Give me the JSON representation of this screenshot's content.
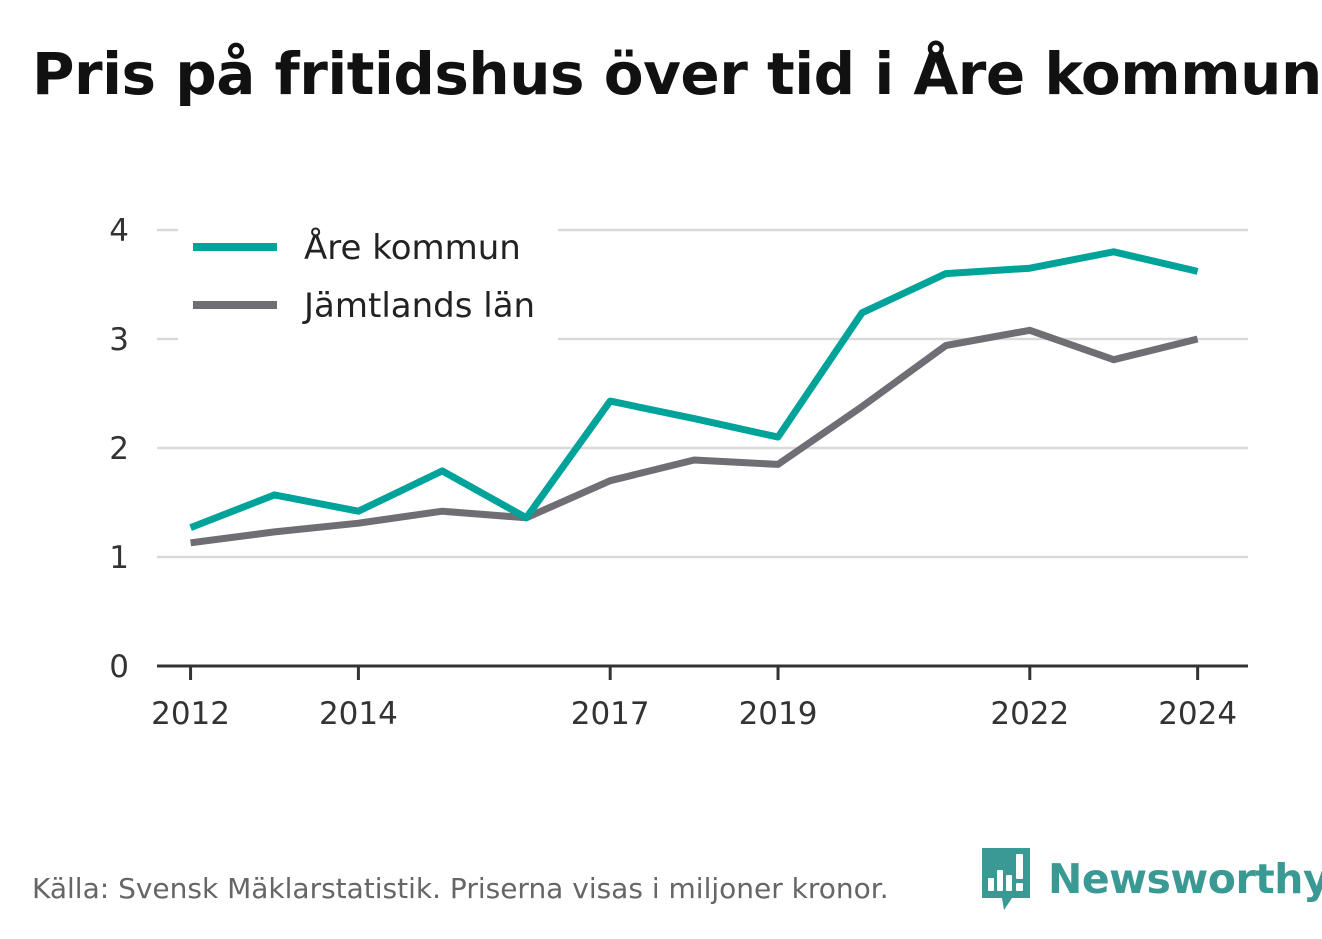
{
  "title": "Pris på fritidshus över tid i Åre kommun",
  "footer": {
    "source": "Källa: Svensk Mäklarstatistik. Priserna visas i miljoner kronor."
  },
  "brand": {
    "name": "Newsworthy",
    "logo_icon": "bar-chart-speech-bubble-icon",
    "color": "#3a9a93"
  },
  "chart_data": {
    "type": "line",
    "x": [
      2012,
      2013,
      2014,
      2015,
      2016,
      2017,
      2018,
      2019,
      2020,
      2021,
      2022,
      2023,
      2024
    ],
    "x_tick_labels": [
      "2012",
      "2014",
      "2017",
      "2019",
      "2022",
      "2024"
    ],
    "y_tick_labels": [
      "0",
      "1",
      "2",
      "3",
      "4"
    ],
    "ylim": [
      0,
      4
    ],
    "xlim": [
      2011.6,
      2024.6
    ],
    "grid": true,
    "legend_position": "top-left",
    "series": [
      {
        "name": "Åre kommun",
        "color": "#00a39a",
        "values": [
          1.27,
          1.57,
          1.42,
          1.79,
          1.36,
          2.43,
          2.27,
          2.1,
          3.24,
          3.6,
          3.65,
          3.8,
          3.62
        ]
      },
      {
        "name": "Jämtlands län",
        "color": "#6f6e75",
        "values": [
          1.13,
          1.23,
          1.31,
          1.42,
          1.36,
          1.7,
          1.89,
          1.85,
          2.38,
          2.94,
          3.08,
          2.81,
          3.0
        ]
      }
    ]
  }
}
